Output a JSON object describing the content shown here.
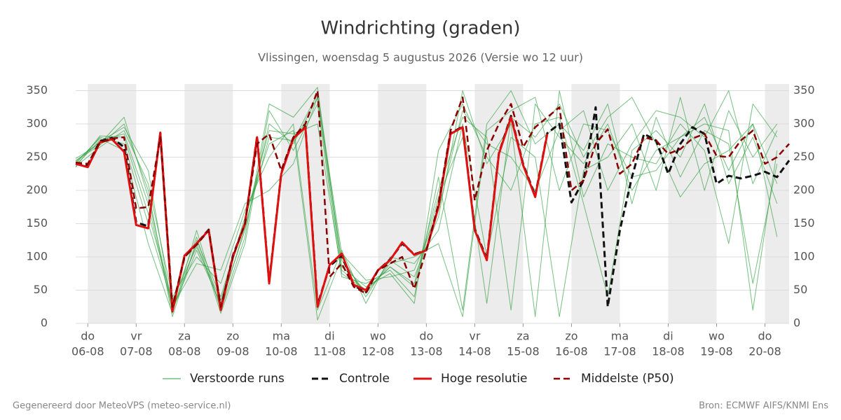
{
  "chart_data": {
    "type": "line",
    "title": "Windrichting (graden)",
    "subtitle": "Vlissingen, woensdag  5 augustus 2026 (Versie wo 12 uur)",
    "x": [
      -0.25,
      0,
      0.25,
      0.5,
      0.75,
      1,
      1.25,
      1.5,
      1.75,
      2,
      2.25,
      2.5,
      2.75,
      3,
      3.25,
      3.5,
      3.75,
      4,
      4.25,
      4.5,
      4.75,
      5,
      5.25,
      5.5,
      5.75,
      6,
      6.25,
      6.5,
      6.75,
      7,
      7.25,
      7.5,
      7.75,
      8,
      8.25,
      8.5,
      8.75,
      9,
      9.25,
      9.5,
      9.75,
      10,
      10.25,
      10.5,
      10.75,
      11,
      11.25,
      11.5,
      11.75,
      12,
      12.25,
      12.5,
      12.75,
      13,
      13.25,
      13.5,
      13.75,
      14,
      14.25,
      14.5
    ],
    "xlim": [
      -0.25,
      14.5
    ],
    "xticks": [
      {
        "value": 0,
        "label": "do",
        "date": "06-08"
      },
      {
        "value": 1,
        "label": "vr",
        "date": "07-08"
      },
      {
        "value": 2,
        "label": "za",
        "date": "08-08"
      },
      {
        "value": 3,
        "label": "zo",
        "date": "09-08"
      },
      {
        "value": 4,
        "label": "ma",
        "date": "10-08"
      },
      {
        "value": 5,
        "label": "di",
        "date": "11-08"
      },
      {
        "value": 6,
        "label": "wo",
        "date": "12-08"
      },
      {
        "value": 7,
        "label": "do",
        "date": "13-08"
      },
      {
        "value": 8,
        "label": "vr",
        "date": "14-08"
      },
      {
        "value": 9,
        "label": "za",
        "date": "15-08"
      },
      {
        "value": 10,
        "label": "zo",
        "date": "16-08"
      },
      {
        "value": 11,
        "label": "ma",
        "date": "17-08"
      },
      {
        "value": 12,
        "label": "di",
        "date": "18-08"
      },
      {
        "value": 13,
        "label": "wo",
        "date": "19-08"
      },
      {
        "value": 14,
        "label": "do",
        "date": "20-08"
      }
    ],
    "ylim": [
      0,
      360
    ],
    "yticks": [
      0,
      50,
      100,
      150,
      200,
      250,
      300,
      350
    ],
    "grid": true,
    "legend": "bottom",
    "ensemble": {
      "name": "Verstoorde runs",
      "color": "#2e9e3e",
      "x": [
        -0.25,
        0.25,
        0.75,
        1.25,
        1.75,
        2.25,
        2.75,
        3.25,
        3.75,
        4.25,
        4.75,
        5.25,
        5.75,
        6.25,
        6.75,
        7.25,
        7.75,
        8.25,
        8.75,
        9.25,
        9.75,
        10.25,
        10.75,
        11.25,
        11.75,
        12.25,
        12.75,
        13.25,
        13.75,
        14.25
      ],
      "runs": [
        [
          238,
          275,
          285,
          180,
          20,
          110,
          30,
          140,
          300,
          270,
          340,
          80,
          50,
          85,
          60,
          200,
          310,
          280,
          20,
          330,
          280,
          240,
          300,
          200,
          260,
          280,
          310,
          230,
          300,
          210
        ],
        [
          245,
          268,
          300,
          200,
          10,
          125,
          40,
          160,
          270,
          290,
          5,
          100,
          40,
          95,
          70,
          160,
          350,
          240,
          300,
          10,
          350,
          190,
          270,
          250,
          240,
          300,
          260,
          120,
          330,
          280
        ],
        [
          240,
          280,
          270,
          150,
          30,
          130,
          15,
          120,
          320,
          260,
          330,
          70,
          60,
          80,
          40,
          220,
          20,
          300,
          350,
          270,
          300,
          260,
          330,
          180,
          310,
          220,
          290,
          270,
          60,
          240
        ],
        [
          236,
          265,
          290,
          210,
          40,
          100,
          60,
          170,
          250,
          300,
          20,
          110,
          30,
          100,
          90,
          140,
          300,
          100,
          280,
          250,
          10,
          230,
          250,
          300,
          200,
          340,
          200,
          320,
          250,
          300
        ],
        [
          242,
          278,
          260,
          120,
          15,
          140,
          20,
          130,
          330,
          310,
          355,
          85,
          55,
          75,
          30,
          260,
          330,
          250,
          200,
          300,
          310,
          180,
          40,
          260,
          290,
          250,
          330,
          210,
          280,
          180
        ],
        [
          248,
          270,
          310,
          190,
          25,
          90,
          80,
          180,
          200,
          240,
          340,
          95,
          45,
          90,
          100,
          120,
          10,
          290,
          320,
          340,
          200,
          300,
          290,
          220,
          230,
          280,
          300,
          290,
          20,
          260
        ],
        [
          235,
          282,
          280,
          165,
          35,
          115,
          35,
          155,
          290,
          285,
          300,
          75,
          50,
          85,
          55,
          190,
          280,
          30,
          310,
          280,
          330,
          250,
          310,
          340,
          270,
          190,
          240,
          260,
          300,
          130
        ],
        [
          244,
          273,
          295,
          230,
          20,
          120,
          25,
          145,
          280,
          275,
          345,
          105,
          65,
          70,
          80,
          170,
          320,
          270,
          250,
          200,
          290,
          320,
          200,
          270,
          320,
          310,
          280,
          350,
          210,
          290
        ]
      ]
    },
    "series": [
      {
        "name": "Controle",
        "color": "#111111",
        "dash": true,
        "width": 3,
        "values": [
          240,
          238,
          274,
          279,
          265,
          152,
          146,
          286,
          22,
          100,
          120,
          141,
          22,
          102,
          150,
          281,
          62,
          226,
          279,
          296,
          28,
          86,
          102,
          57,
          47,
          80,
          96,
          120,
          104,
          110,
          176,
          286,
          296,
          142,
          97,
          256,
          312,
          240,
          192,
          286,
          300,
          182,
          215,
          325,
          25,
          140,
          220,
          285,
          275,
          225,
          270,
          295,
          285,
          210,
          222,
          218,
          222,
          228,
          220,
          245
        ]
      },
      {
        "name": "Hoge resolutie",
        "color": "#e01010",
        "dash": false,
        "width": 3,
        "values": [
          240,
          235,
          272,
          277,
          258,
          148,
          143,
          287,
          18,
          102,
          120,
          140,
          20,
          100,
          150,
          280,
          60,
          225,
          278,
          295,
          25,
          88,
          105,
          58,
          50,
          80,
          95,
          122,
          103,
          110,
          175,
          285,
          295,
          140,
          95,
          255,
          310,
          238,
          190,
          285,
          null,
          null,
          null,
          null,
          null,
          null,
          null,
          null,
          null,
          null,
          null,
          null,
          null,
          null,
          null,
          null,
          null,
          null,
          null,
          null
        ]
      },
      {
        "name": "Middelste (P50)",
        "color": "#8b0000",
        "dash": true,
        "width": 2.5,
        "values": [
          242,
          240,
          272,
          278,
          280,
          173,
          175,
          280,
          25,
          100,
          118,
          140,
          25,
          100,
          150,
          270,
          285,
          230,
          280,
          300,
          350,
          70,
          90,
          55,
          45,
          80,
          90,
          100,
          52,
          110,
          180,
          290,
          340,
          185,
          260,
          300,
          330,
          265,
          295,
          310,
          325,
          200,
          215,
          270,
          292,
          225,
          240,
          280,
          275,
          255,
          262,
          278,
          285,
          252,
          250,
          275,
          290,
          240,
          250,
          270
        ]
      }
    ]
  },
  "footer": {
    "left": "Gegenereerd door MeteoVPS (meteo-service.nl)",
    "right": "Bron: ECMWF AIFS/KNMI Ens"
  }
}
